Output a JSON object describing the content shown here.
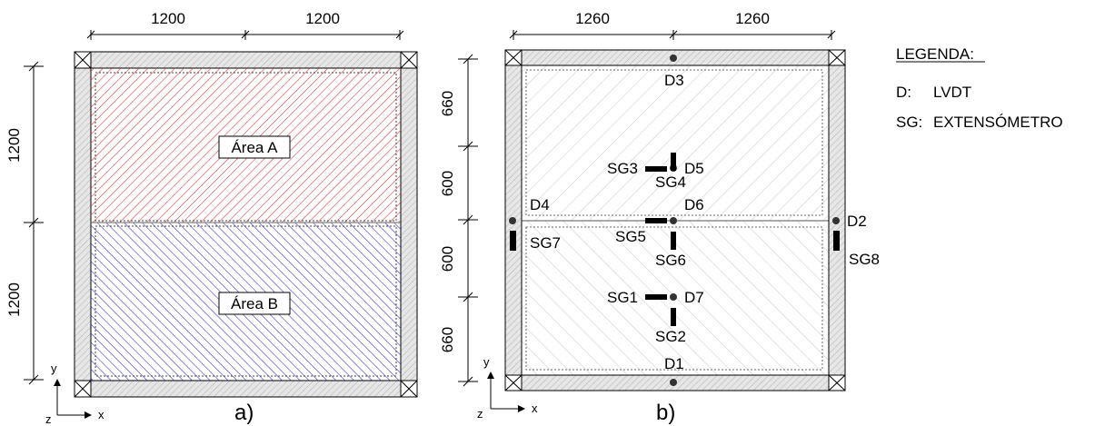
{
  "figure_a": {
    "dim_top": [
      "1200",
      "1200"
    ],
    "dim_left": [
      "1200",
      "1200"
    ],
    "area_top_label": "Área A",
    "area_bottom_label": "Área B",
    "caption": "a)",
    "axes": {
      "y": "y",
      "x": "x",
      "z": "z"
    },
    "area_top_color": "#e03030",
    "area_bottom_color": "#2a2ad0"
  },
  "figure_b": {
    "dim_top": [
      "1260",
      "1260"
    ],
    "dim_left": [
      "660",
      "600",
      "600",
      "660"
    ],
    "lvdt": [
      "D1",
      "D2",
      "D3",
      "D4",
      "D5",
      "D6",
      "D7"
    ],
    "strain_gauges": [
      "SG1",
      "SG2",
      "SG3",
      "SG4",
      "SG5",
      "SG6",
      "SG7",
      "SG8"
    ],
    "caption": "b)",
    "axes": {
      "y": "y",
      "x": "x",
      "z": "z"
    }
  },
  "legend": {
    "title": "LEGENDA:",
    "items": [
      {
        "key": "D:",
        "value": "LVDT"
      },
      {
        "key": "SG:",
        "value": "EXTENSÓMETRO"
      }
    ]
  }
}
